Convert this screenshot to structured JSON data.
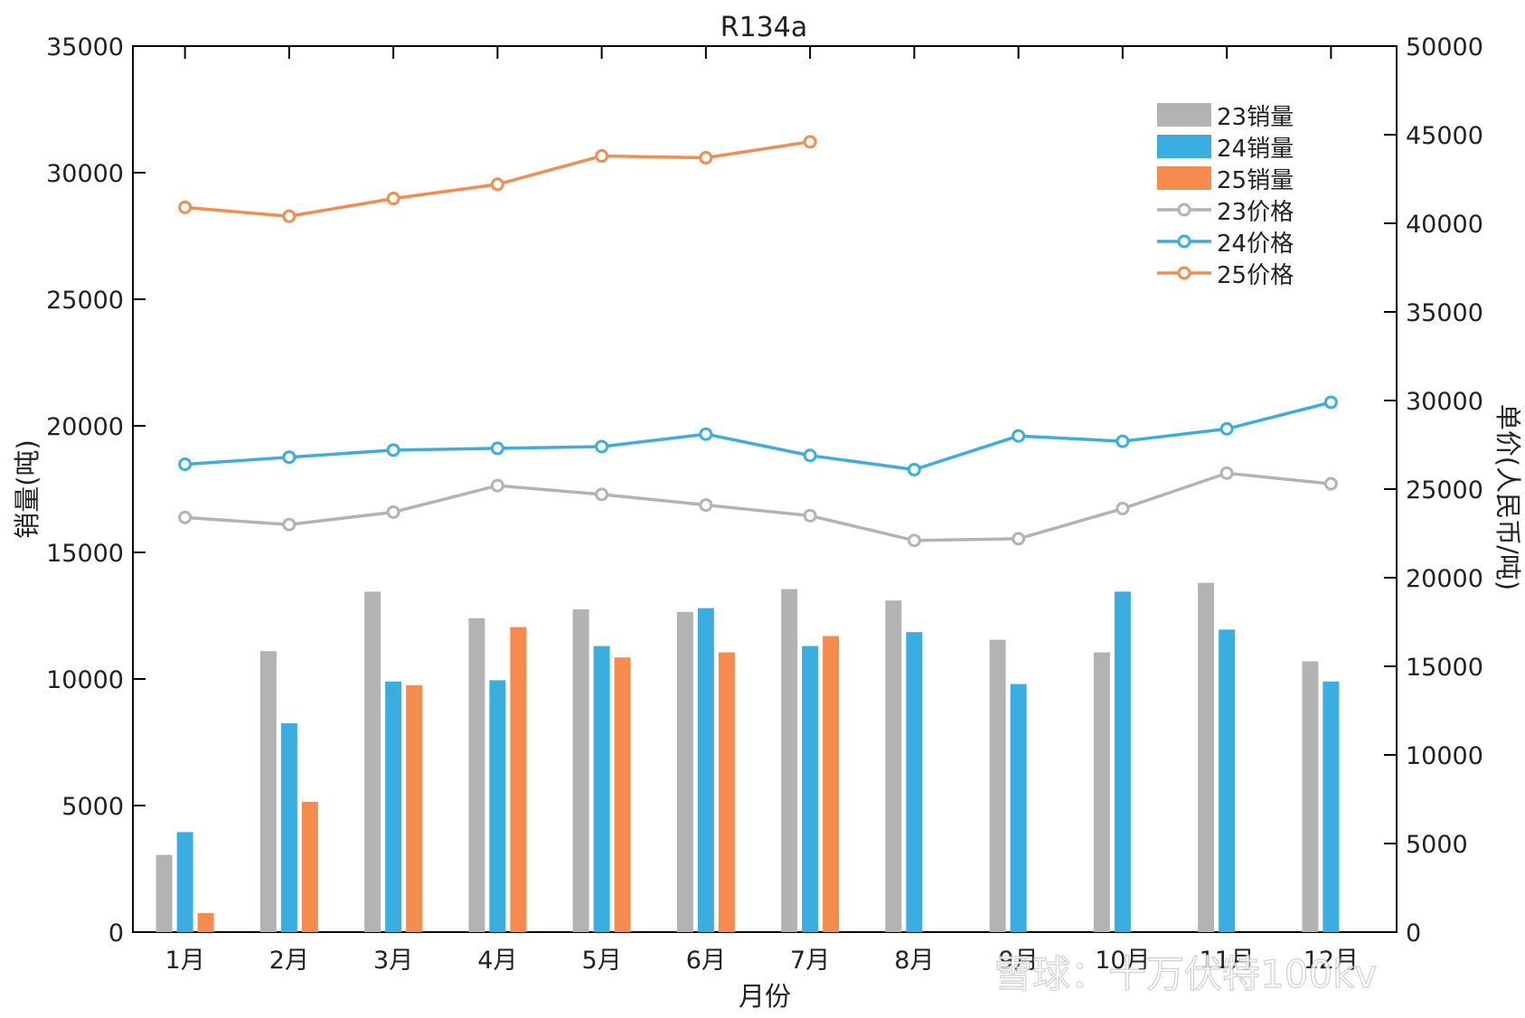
{
  "colors": {
    "s23": "#b3b3b3",
    "s24": "#3aaee0",
    "s25": "#f78b4e",
    "axis": "#000000",
    "text": "#222222"
  },
  "watermark": "雪球：十万伏特100kv",
  "chart_data": {
    "type": "bar",
    "title": "R134a",
    "xlabel": "月份",
    "ylabel": "销量(吨)",
    "ylabel_right": "单价(人民币/吨)",
    "categories": [
      "1月",
      "2月",
      "3月",
      "4月",
      "5月",
      "6月",
      "7月",
      "8月",
      "9月",
      "10月",
      "11月",
      "12月"
    ],
    "ylim": [
      0,
      35000
    ],
    "y_ticks": [
      0,
      5000,
      10000,
      15000,
      20000,
      25000,
      30000,
      35000
    ],
    "ylim_right": [
      0,
      50000
    ],
    "y_ticks_right": [
      0,
      5000,
      10000,
      15000,
      20000,
      25000,
      30000,
      35000,
      40000,
      45000,
      50000
    ],
    "grid": false,
    "legend_position": "top-right",
    "bar_series": [
      {
        "name": "23销量",
        "color": "#b3b3b3",
        "values": [
          3050,
          11100,
          13450,
          12400,
          12750,
          12650,
          13550,
          13100,
          11550,
          11050,
          13800,
          10700
        ]
      },
      {
        "name": "24销量",
        "color": "#3aaee0",
        "values": [
          3950,
          8250,
          9900,
          9950,
          11300,
          12800,
          11300,
          11850,
          9800,
          13450,
          11950,
          9900
        ]
      },
      {
        "name": "25销量",
        "color": "#f78b4e",
        "values": [
          750,
          5150,
          9750,
          12050,
          10850,
          11050,
          11700,
          null,
          null,
          null,
          null,
          null
        ]
      }
    ],
    "line_series": [
      {
        "name": "23价格",
        "color": "#b3b3b3",
        "axis": "right",
        "values": [
          23400,
          23000,
          23700,
          25200,
          24700,
          24100,
          23500,
          22100,
          22200,
          23900,
          25900,
          25300
        ]
      },
      {
        "name": "24价格",
        "color": "#3aaee0",
        "axis": "right",
        "values": [
          26400,
          26800,
          27200,
          27300,
          27400,
          28100,
          26900,
          26100,
          28000,
          27700,
          28400,
          29900
        ]
      },
      {
        "name": "25价格",
        "color": "#f78b4e",
        "axis": "right",
        "values": [
          40900,
          40400,
          41400,
          42200,
          43800,
          43700,
          44600,
          null,
          null,
          null,
          null,
          null
        ]
      }
    ]
  }
}
